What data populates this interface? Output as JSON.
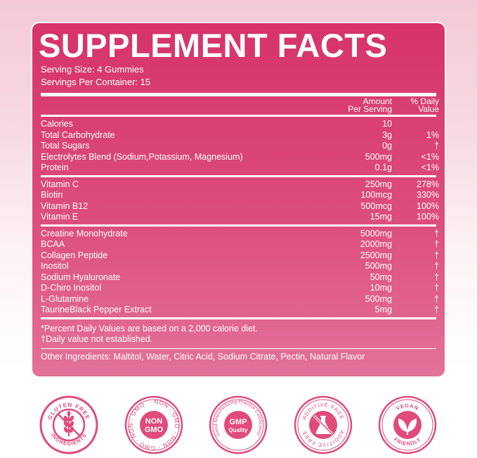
{
  "panel": {
    "title": "SUPPLEMENT FACTS",
    "serving_size": "Serving Size: 4 Gummies",
    "servings_per_container": "Servings Per Container: 15",
    "header": {
      "amount_line1": "Amount",
      "amount_line2": "Per Serving",
      "dv_line1": "% Daily",
      "dv_line2": "Value"
    },
    "section1": [
      {
        "name": "Calories",
        "amount": "10",
        "dv": ""
      },
      {
        "name": "Total Carbohydrate",
        "amount": "3g",
        "dv": "1%"
      },
      {
        "name": "Total Sugars",
        "amount": "0g",
        "dv": "†"
      },
      {
        "name": "Electrolytes Blend (Sodium,Potassium, Magnesium)",
        "amount": "500mg",
        "dv": "<1%"
      },
      {
        "name": "Protein",
        "amount": "0.1g",
        "dv": "<1%"
      }
    ],
    "section2": [
      {
        "name": "Vitamin C",
        "amount": "250mg",
        "dv": "278%"
      },
      {
        "name": "Biotin",
        "amount": "100mcg",
        "dv": "330%"
      },
      {
        "name": "Vitamin B12",
        "amount": "500mcg",
        "dv": "100%"
      },
      {
        "name": "Vitamin E",
        "amount": "15mg",
        "dv": "100%"
      }
    ],
    "section3": [
      {
        "name": "Creatine Monohydrate",
        "amount": "5000mg",
        "dv": "†"
      },
      {
        "name": "BCAA",
        "amount": "2000mg",
        "dv": "†"
      },
      {
        "name": "Collagen Peptide",
        "amount": "2500mg",
        "dv": "†"
      },
      {
        "name": "Inositol",
        "amount": "500mg",
        "dv": "†"
      },
      {
        "name": "Sodium Hyaluronate",
        "amount": "50mg",
        "dv": "†"
      },
      {
        "name": "D-Chiro Inositol",
        "amount": "10mg",
        "dv": "†"
      },
      {
        "name": "L-Glutamine",
        "amount": "500mg",
        "dv": "†"
      },
      {
        "name": "TaurineBlack Pepper Extract",
        "amount": "5mg",
        "dv": "†"
      }
    ],
    "note1": "*Percent Daily Values are based on a 2,000 calorie diet.",
    "note2": "†Daily value not established.",
    "other_ingredients": "Other Ingredients: Maltitol, Water, Citric Acid, Sodium Citrate, Pectin, Natural Flavor"
  },
  "badges": {
    "gluten_free": {
      "top": "GLUTEN FREE",
      "bottom": "INGREDIENTS",
      "icon": "wheat-icon"
    },
    "non_gmo": {
      "ring": "NON - GMO · NON - GMO · NON - GMO ·",
      "line1": "NON",
      "line2": "GMO",
      "icon": "non-gmo-seal-icon"
    },
    "gmp": {
      "ring": "Good Manufacturing Practice Certification",
      "line1": "GMP",
      "line2": "Quality",
      "icon": "gmp-seal-icon"
    },
    "additive_free": {
      "top": "ADDITIVE FREE",
      "bottom": "ADDITIVE FREE",
      "icon": "no-flask-icon"
    },
    "vegan": {
      "top": "VEGAN",
      "bottom": "FRIENDLY",
      "icon": "leaf-icon"
    },
    "colors": {
      "brand_pink": "#d6336a",
      "badge_ring": "#e04b7c"
    }
  }
}
